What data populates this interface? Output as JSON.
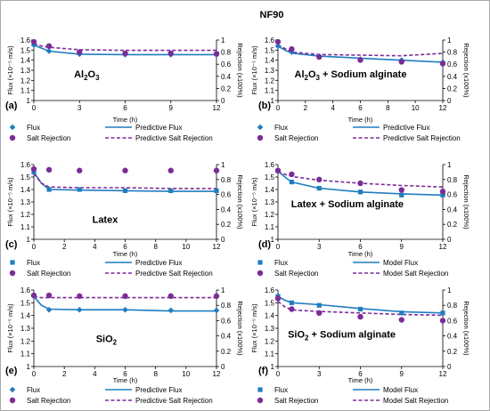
{
  "figure_title": "NF90",
  "colors": {
    "flux": "#1F7DC1",
    "rejection": "#7B2C97",
    "frame": "#aaaaaa"
  },
  "chart_data": [
    {
      "type": "line",
      "panel_label": "(a)",
      "annotation": "Al2O3",
      "annotation_parts": [
        [
          "Al",
          "n"
        ],
        [
          "2",
          "sub"
        ],
        [
          "O",
          "n"
        ],
        [
          "3",
          "sub"
        ]
      ],
      "xlabel": "Time (h)",
      "ylabel_left": "Flux (×10⁻⁵ m/s)",
      "ylabel_right": "Rejection (x100%)",
      "xlim": [
        0,
        12
      ],
      "ylim_left": [
        1.0,
        1.6
      ],
      "ylim_right": [
        0,
        1
      ],
      "xticks": [
        "0",
        "3",
        "6",
        "9",
        "12"
      ],
      "yticks_left": [
        "1",
        "1.1",
        "1.2",
        "1.3",
        "1.4",
        "1.5",
        "1.6"
      ],
      "yticks_right": [
        "0",
        "0.2",
        "0.4",
        "0.6",
        "0.8",
        "1"
      ],
      "flux_marker": "diamond",
      "series": [
        {
          "name": "Flux",
          "axis": "left",
          "style": "marker",
          "x": [
            0,
            1,
            3,
            6,
            9,
            12
          ],
          "y": [
            1.55,
            1.49,
            1.46,
            1.455,
            1.455,
            1.455
          ]
        },
        {
          "name": "Predictive Flux",
          "axis": "left",
          "style": "solid",
          "x": [
            0,
            1,
            3,
            6,
            9,
            12
          ],
          "y": [
            1.55,
            1.49,
            1.46,
            1.455,
            1.455,
            1.455
          ]
        },
        {
          "name": "Salt Rejection",
          "axis": "right",
          "style": "circle",
          "x": [
            0,
            1,
            3,
            6,
            9,
            12
          ],
          "y": [
            0.97,
            0.9,
            0.8,
            0.78,
            0.78,
            0.77
          ]
        },
        {
          "name": "Predictive Salt Rejection",
          "axis": "right",
          "style": "dashed",
          "x": [
            0,
            0.5,
            1,
            3,
            6,
            9,
            12
          ],
          "y": [
            0.94,
            0.9,
            0.88,
            0.84,
            0.83,
            0.83,
            0.83
          ]
        }
      ]
    },
    {
      "type": "line",
      "panel_label": "(b)",
      "annotation": "Al2O3 + Sodium alginate",
      "annotation_parts": [
        [
          "Al",
          "n"
        ],
        [
          "2",
          "sub"
        ],
        [
          "O",
          "n"
        ],
        [
          "3",
          "sub"
        ],
        [
          " + Sodium alginate",
          "n"
        ]
      ],
      "xlabel": "Time (h)",
      "ylabel_left": "Flux (×10⁻⁵ m/s)",
      "ylabel_right": "Rejection (x100%)",
      "xlim": [
        0,
        12
      ],
      "ylim_left": [
        1.0,
        1.6
      ],
      "ylim_right": [
        0,
        1
      ],
      "xticks": [
        "0",
        "2",
        "4",
        "6",
        "8",
        "10",
        "12"
      ],
      "yticks_left": [
        "1",
        "1.1",
        "1.2",
        "1.3",
        "1.4",
        "1.5",
        "1.6"
      ],
      "yticks_right": [
        "0",
        "0.2",
        "0.4",
        "0.6",
        "0.8",
        "1"
      ],
      "flux_marker": "diamond",
      "series": [
        {
          "name": "Flux",
          "axis": "left",
          "style": "marker",
          "x": [
            0,
            1,
            3,
            6,
            9,
            12
          ],
          "y": [
            1.54,
            1.48,
            1.44,
            1.41,
            1.4,
            1.38
          ]
        },
        {
          "name": "Predictive Flux",
          "axis": "left",
          "style": "solid",
          "x": [
            0,
            0.5,
            1,
            3,
            6,
            9,
            12
          ],
          "y": [
            1.54,
            1.5,
            1.47,
            1.44,
            1.42,
            1.4,
            1.38
          ]
        },
        {
          "name": "Salt Rejection",
          "axis": "right",
          "style": "circle",
          "x": [
            0,
            1,
            3,
            6,
            9,
            12
          ],
          "y": [
            0.97,
            0.85,
            0.72,
            0.67,
            0.64,
            0.61
          ]
        },
        {
          "name": "Predictive Salt Rejection",
          "axis": "right",
          "style": "dashed",
          "x": [
            0,
            0.5,
            1,
            3,
            6,
            9,
            12
          ],
          "y": [
            0.92,
            0.86,
            0.8,
            0.76,
            0.75,
            0.74,
            0.78
          ]
        }
      ]
    },
    {
      "type": "line",
      "panel_label": "(c)",
      "annotation": "Latex",
      "annotation_parts": [
        [
          "Latex",
          "n"
        ]
      ],
      "xlabel": "Time (h)",
      "ylabel_left": "Flux (×10⁻⁵ m/s)",
      "ylabel_right": "Rejection (x100%)",
      "xlim": [
        0,
        12
      ],
      "ylim_left": [
        1.0,
        1.6
      ],
      "ylim_right": [
        0,
        1
      ],
      "xticks": [
        "0",
        "2",
        "4",
        "6",
        "8",
        "10",
        "12"
      ],
      "yticks_left": [
        "1",
        "1.1",
        "1.2",
        "1.3",
        "1.4",
        "1.5",
        "1.6"
      ],
      "yticks_right": [
        "0",
        "0.2",
        "0.4",
        "0.6",
        "0.8",
        "1"
      ],
      "flux_marker": "square",
      "series": [
        {
          "name": "Flux",
          "axis": "left",
          "style": "marker",
          "x": [
            0,
            1,
            3,
            6,
            9,
            12
          ],
          "y": [
            1.54,
            1.4,
            1.4,
            1.39,
            1.39,
            1.39
          ]
        },
        {
          "name": "Predictive Flux",
          "axis": "left",
          "style": "solid",
          "x": [
            0,
            0.5,
            1,
            3,
            6,
            9,
            12
          ],
          "y": [
            1.54,
            1.45,
            1.4,
            1.395,
            1.39,
            1.385,
            1.385
          ]
        },
        {
          "name": "Salt Rejection",
          "axis": "right",
          "style": "circle",
          "x": [
            0,
            1,
            3,
            6,
            9,
            12
          ],
          "y": [
            0.94,
            0.93,
            0.92,
            0.92,
            0.92,
            0.92
          ]
        },
        {
          "name": "Predictive Salt Rejection",
          "axis": "right",
          "style": "dashed",
          "x": [
            0,
            0.5,
            1,
            3,
            6,
            9,
            12
          ],
          "y": [
            0.88,
            0.75,
            0.7,
            0.69,
            0.69,
            0.68,
            0.68
          ]
        }
      ]
    },
    {
      "type": "line",
      "panel_label": "(d)",
      "annotation": "Latex + Sodium alginate",
      "annotation_parts": [
        [
          "Latex + Sodium alginate",
          "n"
        ]
      ],
      "xlabel": "Time (h)",
      "ylabel_left": "Flux (×10⁻⁵ m/s)",
      "ylabel_right": "Rejection (x100%)",
      "xlim": [
        0,
        12
      ],
      "ylim_left": [
        1.0,
        1.6
      ],
      "ylim_right": [
        0,
        1
      ],
      "xticks": [
        "0",
        "3",
        "6",
        "9",
        "12"
      ],
      "yticks_left": [
        "1",
        "1.1",
        "1.2",
        "1.3",
        "1.4",
        "1.5",
        "1.6"
      ],
      "yticks_right": [
        "0",
        "0.2",
        "0.4",
        "0.6",
        "0.8",
        "1"
      ],
      "flux_marker": "square",
      "series": [
        {
          "name": "Flux",
          "axis": "left",
          "style": "marker",
          "x": [
            0,
            1,
            3,
            6,
            9,
            12
          ],
          "y": [
            1.55,
            1.46,
            1.41,
            1.38,
            1.355,
            1.355
          ]
        },
        {
          "name": "Model Flux",
          "axis": "left",
          "style": "solid",
          "x": [
            0,
            0.5,
            1,
            3,
            6,
            9,
            12
          ],
          "y": [
            1.55,
            1.5,
            1.46,
            1.41,
            1.38,
            1.365,
            1.355
          ]
        },
        {
          "name": "Salt Rejection",
          "axis": "right",
          "style": "circle",
          "x": [
            0,
            1,
            3,
            6,
            9,
            12
          ],
          "y": [
            0.92,
            0.87,
            0.8,
            0.75,
            0.66,
            0.64
          ]
        },
        {
          "name": "Model Salt Rejection",
          "axis": "right",
          "style": "dashed",
          "x": [
            0,
            0.5,
            1,
            3,
            6,
            9,
            12
          ],
          "y": [
            0.9,
            0.87,
            0.84,
            0.79,
            0.75,
            0.72,
            0.7
          ]
        }
      ]
    },
    {
      "type": "line",
      "panel_label": "(e)",
      "annotation": "SiO2",
      "annotation_parts": [
        [
          "SiO",
          "n"
        ],
        [
          "2",
          "sub"
        ]
      ],
      "xlabel": "Time (h)",
      "ylabel_left": "Flux (×10⁻⁵ m/s)",
      "ylabel_right": "Rejection (x100%)",
      "xlim": [
        0,
        12
      ],
      "ylim_left": [
        1.0,
        1.6
      ],
      "ylim_right": [
        0,
        1
      ],
      "xticks": [
        "0",
        "2",
        "4",
        "6",
        "8",
        "10",
        "12"
      ],
      "yticks_left": [
        "1",
        "1.1",
        "1.2",
        "1.3",
        "1.4",
        "1.5",
        "1.6"
      ],
      "yticks_right": [
        "0",
        "0.2",
        "0.4",
        "0.6",
        "0.8",
        "1"
      ],
      "flux_marker": "diamond",
      "series": [
        {
          "name": "Flux",
          "axis": "left",
          "style": "marker",
          "x": [
            0,
            1,
            3,
            6,
            9,
            12
          ],
          "y": [
            1.55,
            1.445,
            1.445,
            1.445,
            1.44,
            1.44
          ]
        },
        {
          "name": "Predictive Flux",
          "axis": "left",
          "style": "solid",
          "x": [
            0,
            0.5,
            1,
            3,
            6,
            9,
            12
          ],
          "y": [
            1.55,
            1.48,
            1.45,
            1.445,
            1.445,
            1.435,
            1.435
          ]
        },
        {
          "name": "Salt Rejection",
          "axis": "right",
          "style": "circle",
          "x": [
            0,
            1,
            3,
            6,
            9,
            12
          ],
          "y": [
            0.93,
            0.93,
            0.92,
            0.92,
            0.92,
            0.92
          ]
        },
        {
          "name": "Predictive Salt Rejection",
          "axis": "right",
          "style": "dashed",
          "x": [
            0,
            0.5,
            1,
            3,
            6,
            9,
            12
          ],
          "y": [
            0.91,
            0.9,
            0.9,
            0.9,
            0.9,
            0.9,
            0.9
          ]
        }
      ]
    },
    {
      "type": "line",
      "panel_label": "(f)",
      "annotation": "SiO2 + Sodium alginate",
      "annotation_parts": [
        [
          "SiO",
          "n"
        ],
        [
          "2",
          "sub"
        ],
        [
          " + Sodium alginate",
          "n"
        ]
      ],
      "xlabel": "Time (h)",
      "ylabel_left": "Flux (×10⁻⁵ m/s)",
      "ylabel_right": "Rejection (x100%)",
      "xlim": [
        0,
        12
      ],
      "ylim_left": [
        1.0,
        1.6
      ],
      "ylim_right": [
        0,
        1
      ],
      "xticks": [
        "0",
        "3",
        "6",
        "9",
        "12"
      ],
      "yticks_left": [
        "1",
        "1.1",
        "1.2",
        "1.3",
        "1.4",
        "1.5",
        "1.6"
      ],
      "yticks_right": [
        "0",
        "0.2",
        "0.4",
        "0.6",
        "0.8",
        "1"
      ],
      "flux_marker": "square",
      "series": [
        {
          "name": "Flux",
          "axis": "left",
          "style": "marker",
          "x": [
            0,
            1,
            3,
            6,
            9,
            12
          ],
          "y": [
            1.55,
            1.5,
            1.48,
            1.45,
            1.42,
            1.42
          ]
        },
        {
          "name": "Model Flux",
          "axis": "left",
          "style": "solid",
          "x": [
            0,
            0.5,
            1,
            3,
            6,
            9,
            12
          ],
          "y": [
            1.55,
            1.52,
            1.5,
            1.485,
            1.455,
            1.43,
            1.42
          ]
        },
        {
          "name": "Salt Rejection",
          "axis": "right",
          "style": "circle",
          "x": [
            0,
            1,
            3,
            6,
            9,
            12
          ],
          "y": [
            0.89,
            0.75,
            0.7,
            0.65,
            0.61,
            0.6
          ]
        },
        {
          "name": "Model Salt Rejection",
          "axis": "right",
          "style": "dashed",
          "x": [
            0,
            0.5,
            1,
            3,
            6,
            9,
            12
          ],
          "y": [
            0.85,
            0.78,
            0.74,
            0.72,
            0.7,
            0.68,
            0.67
          ]
        }
      ]
    }
  ]
}
